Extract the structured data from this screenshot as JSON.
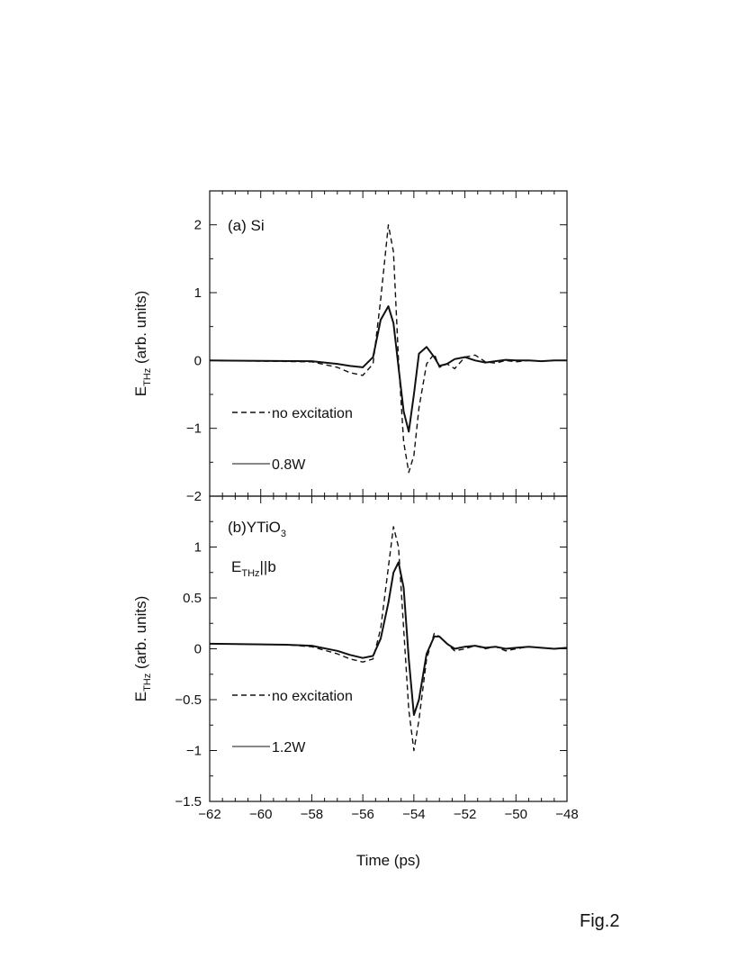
{
  "figure_label": "Fig.2",
  "chart_data": [
    {
      "type": "line",
      "panel_label": "(a) Si",
      "xlabel": "Time (ps)",
      "ylabel": {
        "main": "E",
        "sub": "THz",
        "rest": " (arb. units)"
      },
      "xlim": [
        -62,
        -48
      ],
      "ylim": [
        -2,
        2.5
      ],
      "yticks": [
        -2,
        -1,
        0,
        1,
        2
      ],
      "yticklabels": [
        "−2",
        "−1",
        "0",
        "1",
        "2"
      ],
      "series": [
        {
          "name": "no excitation",
          "style": "dashed",
          "x": [
            -62,
            -58,
            -57,
            -56.5,
            -56,
            -55.6,
            -55.3,
            -55.0,
            -54.8,
            -54.6,
            -54.4,
            -54.2,
            -54.0,
            -53.8,
            -53.5,
            -53.2,
            -53.0,
            -52.7,
            -52.4,
            -52.0,
            -51.6,
            -51.2,
            -50.8,
            -50.4,
            -50.0,
            -49.5,
            -49.0,
            -48.5,
            -48.0
          ],
          "y": [
            0.0,
            -0.02,
            -0.1,
            -0.18,
            -0.22,
            -0.05,
            0.9,
            2.0,
            1.6,
            0.0,
            -1.2,
            -1.65,
            -1.4,
            -0.7,
            -0.05,
            0.1,
            -0.1,
            -0.05,
            -0.12,
            0.05,
            0.08,
            -0.02,
            -0.04,
            0.0,
            -0.02,
            0.0,
            -0.01,
            0.0,
            0.0
          ]
        },
        {
          "name": "0.8W",
          "style": "solid",
          "x": [
            -62,
            -58,
            -57,
            -56.5,
            -56,
            -55.6,
            -55.3,
            -55.0,
            -54.8,
            -54.6,
            -54.4,
            -54.2,
            -54.0,
            -53.8,
            -53.5,
            -53.2,
            -53.0,
            -52.7,
            -52.4,
            -52.0,
            -51.6,
            -51.2,
            -50.8,
            -50.4,
            -50.0,
            -49.5,
            -49.0,
            -48.5,
            -48.0
          ],
          "y": [
            0.0,
            -0.01,
            -0.05,
            -0.08,
            -0.1,
            0.05,
            0.6,
            0.8,
            0.55,
            -0.1,
            -0.75,
            -1.05,
            -0.5,
            0.1,
            0.2,
            0.05,
            -0.08,
            -0.05,
            0.02,
            0.05,
            0.0,
            -0.03,
            -0.01,
            0.01,
            0.0,
            0.0,
            -0.01,
            0.0,
            0.0
          ]
        }
      ],
      "legend": [
        "no excitation",
        "0.8W"
      ]
    },
    {
      "type": "line",
      "panel_label": {
        "main": "(b)YTiO",
        "sub": "3"
      },
      "annotation": {
        "main": "E",
        "sub": "THz",
        "rest": "||b"
      },
      "xlabel": "Time (ps)",
      "ylabel": {
        "main": "E",
        "sub": "THz",
        "rest": " (arb. units)"
      },
      "xlim": [
        -62,
        -48
      ],
      "ylim": [
        -1.5,
        1.5
      ],
      "xticks": [
        -62,
        -60,
        -58,
        -56,
        -54,
        -52,
        -50,
        -48
      ],
      "xticklabels": [
        "−62",
        "−60",
        "−58",
        "−56",
        "−54",
        "−52",
        "−50",
        "−48"
      ],
      "yticks": [
        -1.5,
        -1,
        -0.5,
        0,
        0.5,
        1
      ],
      "yticklabels": [
        "−1.5",
        "−1",
        "−0.5",
        "0",
        "0.5",
        "1"
      ],
      "series": [
        {
          "name": "no excitation",
          "style": "dashed",
          "x": [
            -62,
            -59,
            -58,
            -57,
            -56.5,
            -56,
            -55.6,
            -55.3,
            -55.0,
            -54.8,
            -54.6,
            -54.4,
            -54.2,
            -54.0,
            -53.8,
            -53.5,
            -53.2,
            -53.0,
            -52.7,
            -52.4,
            -52.0,
            -51.6,
            -51.2,
            -50.8,
            -50.4,
            -50.0,
            -49.5,
            -49.0,
            -48.5,
            -48.0
          ],
          "y": [
            0.05,
            0.04,
            0.02,
            -0.05,
            -0.1,
            -0.13,
            -0.1,
            0.2,
            0.8,
            1.2,
            1.0,
            0.2,
            -0.6,
            -1.0,
            -0.7,
            -0.1,
            0.15,
            0.12,
            0.05,
            -0.02,
            0.0,
            0.03,
            0.0,
            0.02,
            -0.02,
            0.0,
            0.02,
            0.01,
            0.0,
            0.01
          ]
        },
        {
          "name": "1.2W",
          "style": "solid",
          "x": [
            -62,
            -59,
            -58,
            -57,
            -56.5,
            -56,
            -55.6,
            -55.3,
            -55.0,
            -54.8,
            -54.6,
            -54.4,
            -54.2,
            -54.0,
            -53.8,
            -53.5,
            -53.2,
            -53.0,
            -52.7,
            -52.4,
            -52.0,
            -51.6,
            -51.2,
            -50.8,
            -50.4,
            -50.0,
            -49.5,
            -49.0,
            -48.5,
            -48.0
          ],
          "y": [
            0.05,
            0.04,
            0.03,
            -0.02,
            -0.06,
            -0.09,
            -0.07,
            0.1,
            0.45,
            0.75,
            0.85,
            0.6,
            -0.1,
            -0.65,
            -0.5,
            -0.05,
            0.12,
            0.12,
            0.05,
            0.0,
            0.02,
            0.03,
            0.01,
            0.02,
            0.0,
            0.01,
            0.02,
            0.01,
            0.0,
            0.01
          ]
        }
      ],
      "legend": [
        "no excitation",
        "1.2W"
      ]
    }
  ]
}
